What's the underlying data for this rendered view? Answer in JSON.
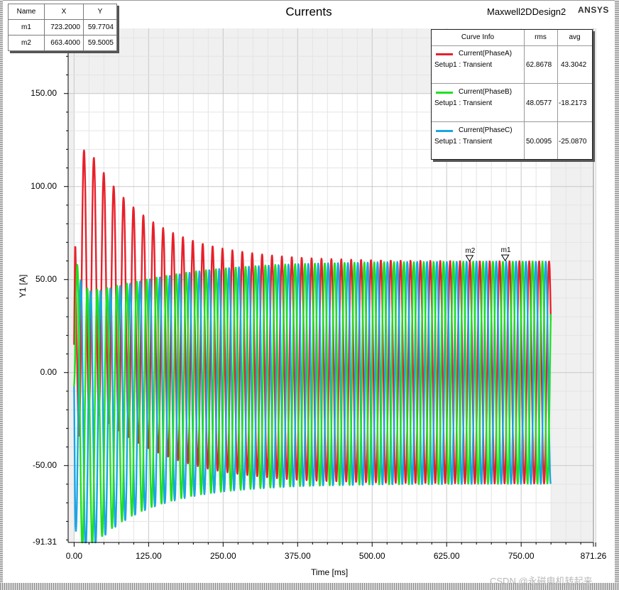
{
  "chart_data": {
    "type": "line",
    "title": "Currents",
    "design_name": "Maxwell2DDesign2",
    "brand": "ANSYS",
    "xlabel": "Time [ms]",
    "ylabel": "Y1 [A]",
    "xlim": [
      -10,
      871.26
    ],
    "ylim": [
      -91.31,
      185
    ],
    "x_ticks": [
      "0.00",
      "125.00",
      "250.00",
      "375.00",
      "500.00",
      "625.00",
      "750.00",
      "871.26"
    ],
    "y_ticks": [
      "-91.31",
      "-50.00",
      "0.00",
      "50.00",
      "100.00",
      "150.00"
    ],
    "time_end": 800,
    "period_ms": 16.6,
    "series": [
      {
        "name": "Current(PhaseA)",
        "setup": "Setup1 : Transient",
        "color": "#e8202a",
        "rms": "62.8678",
        "avg": "43.3042",
        "steady_amplitude": 59.77,
        "initial_peak": 125,
        "phase_deg": 90
      },
      {
        "name": "Current(PhaseB)",
        "setup": "Setup1 : Transient",
        "color": "#20e020",
        "rms": "48.0577",
        "avg": "-18.2173",
        "steady_amplitude": 59.77,
        "initial_peak": -91,
        "phase_deg": -30
      },
      {
        "name": "Current(PhaseC)",
        "setup": "Setup1 : Transient",
        "color": "#1aa5e6",
        "rms": "50.0095",
        "avg": "-25.0870",
        "steady_amplitude": 59.77,
        "initial_peak": -91,
        "phase_deg": 210
      }
    ],
    "markers": [
      {
        "name": "m1",
        "x": 723.2,
        "y": 59.7704,
        "x_text": "723.2000",
        "y_text": "59.7704"
      },
      {
        "name": "m2",
        "x": 663.4,
        "y": 59.5005,
        "x_text": "663.4000",
        "y_text": "59.5005"
      }
    ]
  },
  "marker_table": {
    "headers": [
      "Name",
      "X",
      "Y"
    ]
  },
  "curve_info": {
    "headers": [
      "Curve Info",
      "rms",
      "avg"
    ]
  },
  "watermark": "CSDN @永磁电机转起来"
}
